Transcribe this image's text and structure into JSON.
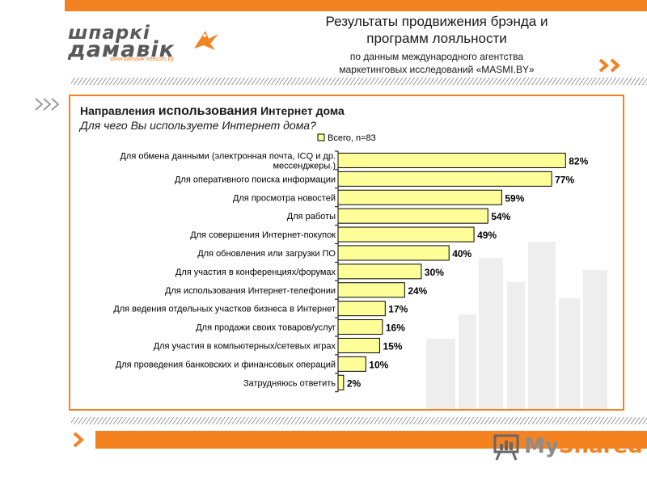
{
  "header": {
    "title_line1": "Результаты продвижения брэнда и",
    "title_line2": "программ лояльности",
    "subtitle_line1": "по данным международного агентства",
    "subtitle_line2": "маркетинговых исследований «MASMI.BY»"
  },
  "logo": {
    "line1": "шпаркі",
    "line2": "дамавік",
    "url": "www.damavik-telecom.by"
  },
  "panel": {
    "title_part1": "Направления ",
    "title_part2": "использования",
    "title_part3": " Интернет дома",
    "question": "Для чего Вы используете Интернет дома?"
  },
  "footer": {
    "brand_my": "My",
    "brand_shared": "Shared"
  },
  "colors": {
    "accent": "#f58220",
    "bar_fill": "#ffff99",
    "bar_stroke": "#000000"
  },
  "icons": [
    "chevron-icon",
    "presentation-board-icon",
    "bird-icon"
  ],
  "chart_data": {
    "type": "bar",
    "orientation": "horizontal",
    "legend_position": "top",
    "series": [
      {
        "name": "Всего, n=83",
        "values": [
          82,
          77,
          59,
          54,
          49,
          40,
          30,
          24,
          17,
          16,
          15,
          10,
          2
        ]
      }
    ],
    "categories": [
      [
        "Для обмена данными (электронная почта, ICQ и др.",
        "мессенджеры.)"
      ],
      [
        "Для оперативного поиска информации"
      ],
      [
        "Для просмотра новостей"
      ],
      [
        "Для работы"
      ],
      [
        "Для совершения Интернет-покупок"
      ],
      [
        "Для обновления или загрузки ПО"
      ],
      [
        "Для участия в конференциях/форумах"
      ],
      [
        "Для использования Интернет-телефонии"
      ],
      [
        "Для ведения отдельных участков бизнеса в Интернет"
      ],
      [
        "Для продажи своих товаров/услуг"
      ],
      [
        "Для участия в компьютерных/сетевых играх"
      ],
      [
        "Для проведения банковских и финансовых операций"
      ],
      [
        "Затрудняюсь ответить"
      ]
    ],
    "value_labels": [
      "82%",
      "77%",
      "59%",
      "54%",
      "49%",
      "40%",
      "30%",
      "24%",
      "17%",
      "16%",
      "15%",
      "10%",
      "2%"
    ],
    "xlim": [
      0,
      100
    ]
  }
}
